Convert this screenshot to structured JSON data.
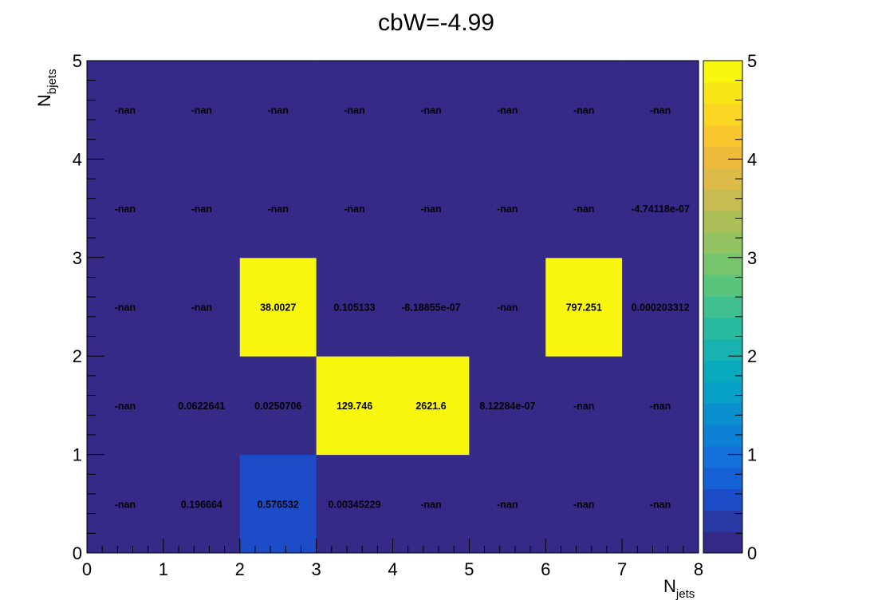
{
  "chart_data": {
    "type": "heatmap",
    "title": "cbW=-4.99",
    "xlabel": {
      "main": "N",
      "sub": "jets"
    },
    "ylabel": {
      "main": "N",
      "sub": "bjets"
    },
    "xlim": [
      0,
      8
    ],
    "ylim": [
      0,
      5
    ],
    "x_ticks": [
      "0",
      "1",
      "2",
      "3",
      "4",
      "5",
      "6",
      "7",
      "8"
    ],
    "y_ticks": [
      "0",
      "1",
      "2",
      "3",
      "4",
      "5"
    ],
    "zlim": [
      0,
      5
    ],
    "z_ticks": [
      "0",
      "1",
      "2",
      "3",
      "4",
      "5"
    ],
    "colormap": "parula",
    "grid": false,
    "colorbar": "right",
    "cells": [
      [
        "-nan",
        "0.196664",
        "0.576532",
        "0.00345229",
        "-nan",
        "-nan",
        "-nan",
        "-nan"
      ],
      [
        "-nan",
        "0.0622641",
        "0.0250706",
        "129.746",
        "2621.6",
        "8.12284e-07",
        "-nan",
        "-nan"
      ],
      [
        "-nan",
        "-nan",
        "38.0027",
        "0.105133",
        "-8.18855e-07",
        "-nan",
        "797.251",
        "0.000203312"
      ],
      [
        "-nan",
        "-nan",
        "-nan",
        "-nan",
        "-nan",
        "-nan",
        "-nan",
        "-4.74118e-07"
      ],
      [
        "-nan",
        "-nan",
        "-nan",
        "-nan",
        "-nan",
        "-nan",
        "-nan",
        "-nan"
      ]
    ]
  }
}
